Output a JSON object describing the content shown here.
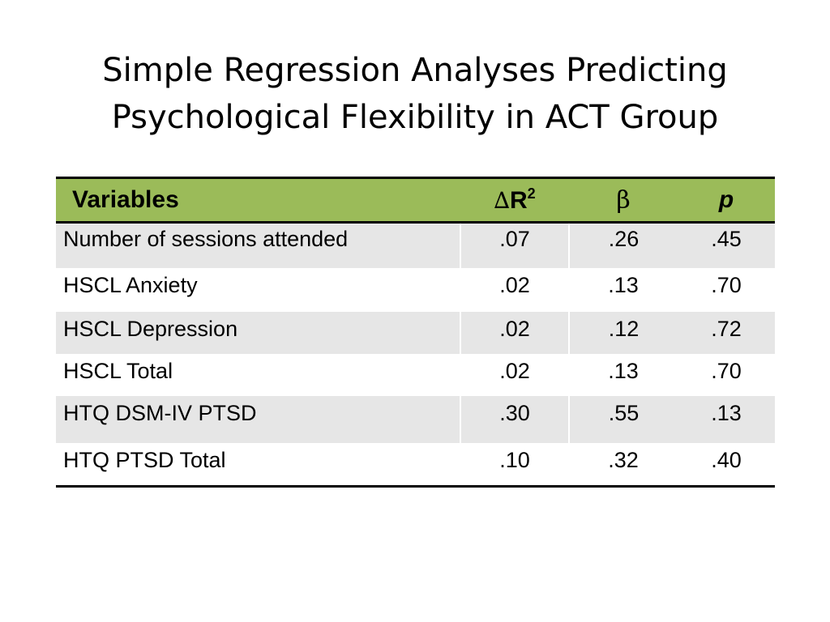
{
  "slide": {
    "title_line1": "Simple Regression Analyses Predicting",
    "title_line2": "Psychological Flexibility in ACT Group"
  },
  "table": {
    "headers": {
      "variables": "Variables",
      "delta_symbol": "∆",
      "r_label": "R",
      "r_superscript": "2",
      "beta": "β",
      "p": "p"
    },
    "rows": [
      {
        "variable": "Number of sessions attended",
        "delta_r2": ".07",
        "beta": ".26",
        "p": ".45"
      },
      {
        "variable": "HSCL Anxiety",
        "delta_r2": ".02",
        "beta": ".13",
        "p": ".70"
      },
      {
        "variable": "HSCL Depression",
        "delta_r2": ".02",
        "beta": ".12",
        "p": ".72"
      },
      {
        "variable": "HSCL Total",
        "delta_r2": ".02",
        "beta": ".13",
        "p": ".70"
      },
      {
        "variable": "HTQ DSM-IV PTSD",
        "delta_r2": ".30",
        "beta": ".55",
        "p": ".13"
      },
      {
        "variable": "HTQ PTSD Total",
        "delta_r2": ".10",
        "beta": ".32",
        "p": ".40"
      }
    ],
    "colors": {
      "header_background": "#9bbb59",
      "stripe_background": "#e6e6e6"
    }
  }
}
